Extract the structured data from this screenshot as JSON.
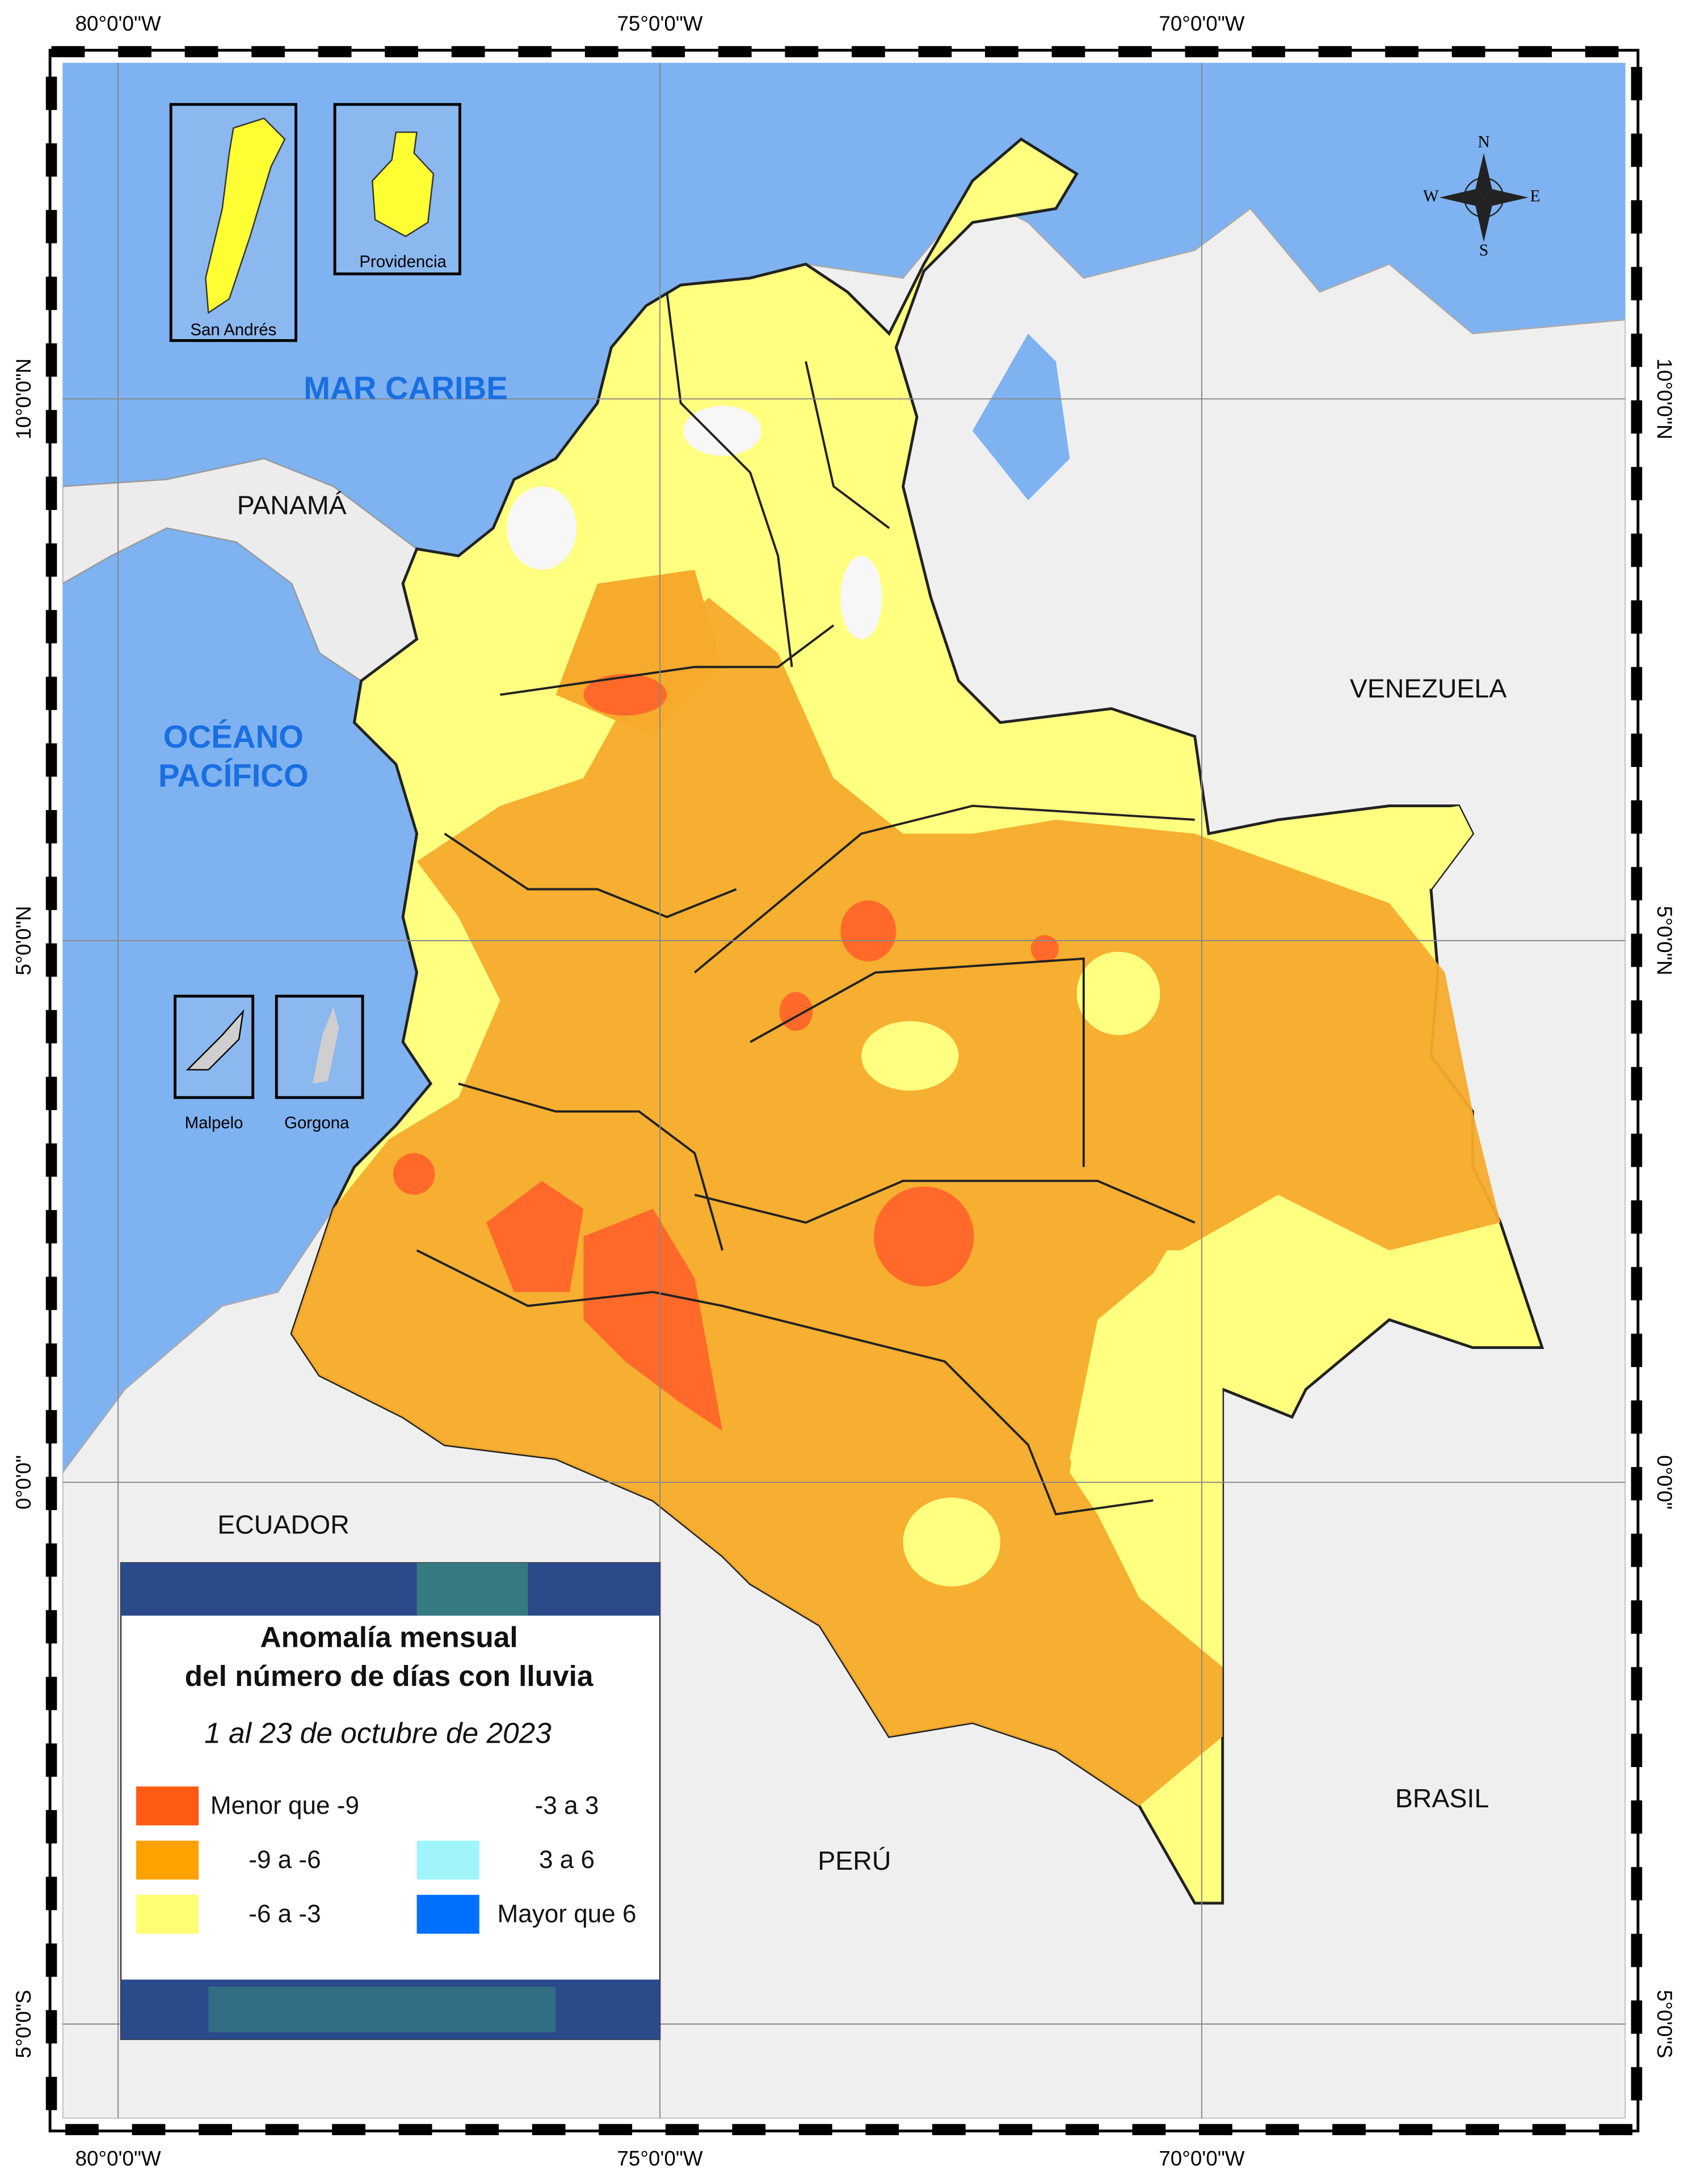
{
  "graticule": {
    "longitudes": [
      "80°0'0\"W",
      "75°0'0\"W",
      "70°0'0\"W"
    ],
    "latitudes": [
      "10°0'0\"N",
      "5°0'0\"N",
      "0°0'0\"",
      "5°0'0\"S"
    ]
  },
  "sea_labels": {
    "caribbean": "MAR CARIBE",
    "pacific": [
      "OCÉANO",
      "PACÍFICO"
    ]
  },
  "countries": {
    "panama": "PANAMÁ",
    "venezuela": "VENEZUELA",
    "ecuador": "ECUADOR",
    "peru": "PERÚ",
    "brasil": "BRASIL"
  },
  "insets": {
    "san_andres": "San Andrés",
    "providencia": "Providencia",
    "malpelo": "Malpelo",
    "gorgona": "Gorgona"
  },
  "compass": {
    "north": "N",
    "south": "S",
    "east": "E",
    "west": "W"
  },
  "legend": {
    "title": [
      "Anomalía mensual",
      "del número de días con lluvia"
    ],
    "period": "1 al 23 de octubre de 2023",
    "items": [
      {
        "label": "Menor que  -9",
        "color": "#ff5a14"
      },
      {
        "label": "-9  a  -6",
        "color": "#ffa200"
      },
      {
        "label": "-6  a  -3",
        "color": "#ffff73"
      },
      {
        "label": "-3  a   3",
        "color": "#ffffff"
      },
      {
        "label": "3  a  6",
        "color": "#a0f5fa"
      },
      {
        "label": "Mayor que 6",
        "color": "#0070ff"
      }
    ]
  }
}
